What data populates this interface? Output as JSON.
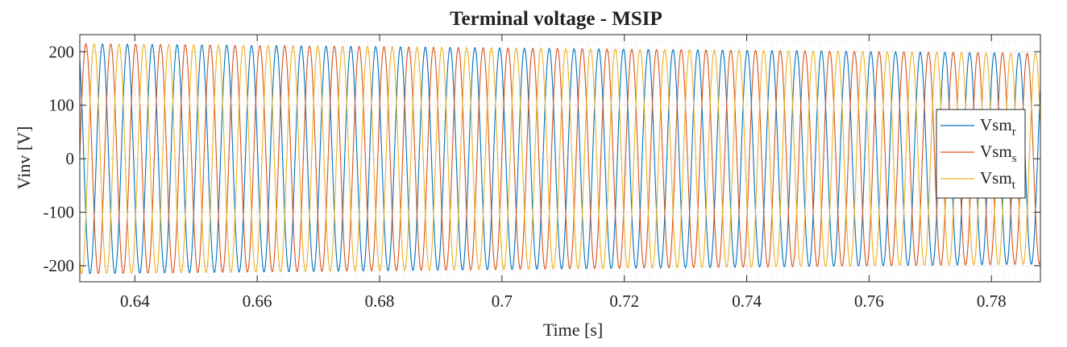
{
  "chart_data": {
    "type": "line",
    "title": "Terminal voltage  - MSIP",
    "xlabel": "Time [s]",
    "ylabel": "Vinv [V]",
    "xlim": [
      0.631,
      0.788
    ],
    "ylim": [
      -230,
      232
    ],
    "xticks": [
      0.64,
      0.66,
      0.68,
      0.7,
      0.72,
      0.74,
      0.76,
      0.78
    ],
    "xtick_labels": [
      "0.64",
      "0.66",
      "0.68",
      "0.7",
      "0.72",
      "0.74",
      "0.76",
      "0.78"
    ],
    "yticks": [
      200,
      100,
      0,
      -100,
      -200
    ],
    "ytick_labels": [
      "200",
      "100",
      "0",
      "-100",
      "-200"
    ],
    "grid": true,
    "grid_style": "dotted major and minor",
    "legend_position": "right",
    "frequency_hz_start": 246,
    "frequency_hz_end": 248,
    "amplitude_start": 215,
    "amplitude_end": 197,
    "series": [
      {
        "name": "Vsm",
        "subscript": "r",
        "color": "#0072BD",
        "phase_deg": 0
      },
      {
        "name": "Vsm",
        "subscript": "s",
        "color": "#D95319",
        "phase_deg": -120
      },
      {
        "name": "Vsm",
        "subscript": "t",
        "color": "#EDB120",
        "phase_deg": 120
      }
    ]
  }
}
